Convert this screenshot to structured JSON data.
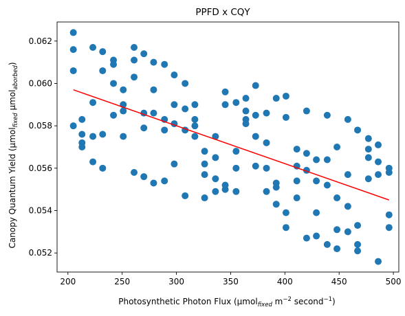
{
  "chart_data": {
    "type": "scatter",
    "title": "PPFD x CQY",
    "xlabel": {
      "parts": [
        {
          "text": "Photosynthetic Photon Flux (µmol"
        },
        {
          "text": "fixed",
          "style": "sub-italic"
        },
        {
          "text": " m"
        },
        {
          "text": "−2",
          "style": "sup"
        },
        {
          "text": " second"
        },
        {
          "text": "−1",
          "style": "sup"
        },
        {
          "text": ")"
        }
      ]
    },
    "ylabel": {
      "parts": [
        {
          "text": "Canopy Quantum Yield (µmol"
        },
        {
          "text": "fixed",
          "style": "sub-italic"
        },
        {
          "text": " µmol"
        },
        {
          "text": "aborbed",
          "style": "sub-italic"
        },
        {
          "text": ")"
        }
      ]
    },
    "xlim": [
      190,
      505
    ],
    "ylim": [
      0.0511,
      0.0629
    ],
    "xticks": [
      200,
      250,
      300,
      350,
      400,
      450,
      500
    ],
    "yticks": [
      0.052,
      0.054,
      0.056,
      0.058,
      0.06,
      0.062
    ],
    "ytick_decimals": 3,
    "grid": false,
    "colors": {
      "points": "#1f77b4",
      "trend": "#ff0000"
    },
    "trend_line": {
      "x": [
        205,
        496
      ],
      "y": [
        0.0597,
        0.0545
      ]
    },
    "points": [
      [
        205,
        0.0624
      ],
      [
        205,
        0.0616
      ],
      [
        205,
        0.0606
      ],
      [
        205,
        0.058
      ],
      [
        213,
        0.0583
      ],
      [
        213,
        0.0576
      ],
      [
        213,
        0.0572
      ],
      [
        213,
        0.057
      ],
      [
        223,
        0.0617
      ],
      [
        223,
        0.0591
      ],
      [
        223,
        0.0575
      ],
      [
        223,
        0.0563
      ],
      [
        232,
        0.0615
      ],
      [
        232,
        0.0606
      ],
      [
        232,
        0.0576
      ],
      [
        232,
        0.056
      ],
      [
        242,
        0.0611
      ],
      [
        242,
        0.0609
      ],
      [
        242,
        0.06
      ],
      [
        242,
        0.0585
      ],
      [
        251,
        0.0597
      ],
      [
        251,
        0.059
      ],
      [
        251,
        0.0587
      ],
      [
        251,
        0.0575
      ],
      [
        261,
        0.0617
      ],
      [
        261,
        0.0611
      ],
      [
        261,
        0.0603
      ],
      [
        261,
        0.0558
      ],
      [
        270,
        0.0614
      ],
      [
        270,
        0.0586
      ],
      [
        270,
        0.0579
      ],
      [
        270,
        0.0556
      ],
      [
        279,
        0.061
      ],
      [
        279,
        0.0597
      ],
      [
        279,
        0.0586
      ],
      [
        279,
        0.0553
      ],
      [
        289,
        0.0609
      ],
      [
        289,
        0.0583
      ],
      [
        289,
        0.0578
      ],
      [
        289,
        0.0554
      ],
      [
        298,
        0.0604
      ],
      [
        298,
        0.059
      ],
      [
        298,
        0.0581
      ],
      [
        298,
        0.0562
      ],
      [
        308,
        0.06
      ],
      [
        308,
        0.0588
      ],
      [
        308,
        0.0578
      ],
      [
        308,
        0.0547
      ],
      [
        317,
        0.059
      ],
      [
        317,
        0.0583
      ],
      [
        317,
        0.058
      ],
      [
        317,
        0.0575
      ],
      [
        326,
        0.0568
      ],
      [
        326,
        0.0562
      ],
      [
        326,
        0.0557
      ],
      [
        326,
        0.0546
      ],
      [
        336,
        0.0575
      ],
      [
        336,
        0.0565
      ],
      [
        336,
        0.0555
      ],
      [
        336,
        0.0549
      ],
      [
        345,
        0.0596
      ],
      [
        345,
        0.059
      ],
      [
        345,
        0.0552
      ],
      [
        345,
        0.055
      ],
      [
        355,
        0.0591
      ],
      [
        355,
        0.0568
      ],
      [
        355,
        0.056
      ],
      [
        355,
        0.0549
      ],
      [
        364,
        0.0593
      ],
      [
        364,
        0.0587
      ],
      [
        364,
        0.0583
      ],
      [
        364,
        0.0581
      ],
      [
        373,
        0.0599
      ],
      [
        373,
        0.0585
      ],
      [
        373,
        0.0575
      ],
      [
        373,
        0.0561
      ],
      [
        383,
        0.0586
      ],
      [
        383,
        0.0572
      ],
      [
        383,
        0.056
      ],
      [
        383,
        0.0549
      ],
      [
        392,
        0.0593
      ],
      [
        392,
        0.0553
      ],
      [
        392,
        0.0551
      ],
      [
        392,
        0.0543
      ],
      [
        401,
        0.0594
      ],
      [
        401,
        0.0584
      ],
      [
        401,
        0.0539
      ],
      [
        401,
        0.0532
      ],
      [
        411,
        0.0569
      ],
      [
        411,
        0.0561
      ],
      [
        411,
        0.0554
      ],
      [
        411,
        0.0546
      ],
      [
        420,
        0.0587
      ],
      [
        420,
        0.0567
      ],
      [
        420,
        0.0559
      ],
      [
        420,
        0.0527
      ],
      [
        429,
        0.0564
      ],
      [
        429,
        0.0554
      ],
      [
        429,
        0.0539
      ],
      [
        429,
        0.0528
      ],
      [
        439,
        0.0585
      ],
      [
        439,
        0.0564
      ],
      [
        439,
        0.0552
      ],
      [
        439,
        0.0524
      ],
      [
        448,
        0.057
      ],
      [
        448,
        0.0546
      ],
      [
        448,
        0.0531
      ],
      [
        448,
        0.0522
      ],
      [
        458,
        0.0583
      ],
      [
        458,
        0.0557
      ],
      [
        458,
        0.0542
      ],
      [
        458,
        0.053
      ],
      [
        467,
        0.0578
      ],
      [
        467,
        0.0533
      ],
      [
        467,
        0.0524
      ],
      [
        467,
        0.0521
      ],
      [
        477,
        0.0574
      ],
      [
        477,
        0.0569
      ],
      [
        477,
        0.0565
      ],
      [
        477,
        0.0555
      ],
      [
        486,
        0.0571
      ],
      [
        486,
        0.0563
      ],
      [
        486,
        0.0557
      ],
      [
        486,
        0.0516
      ],
      [
        496,
        0.056
      ],
      [
        496,
        0.0558
      ],
      [
        496,
        0.0538
      ],
      [
        496,
        0.0532
      ]
    ]
  }
}
